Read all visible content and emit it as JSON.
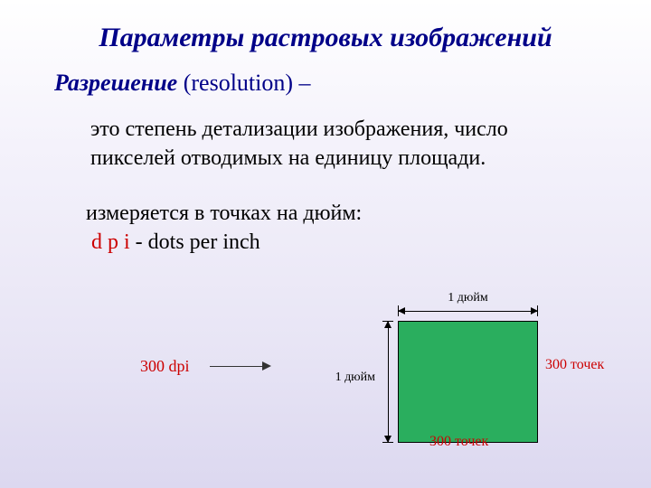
{
  "title": "Параметры растровых изображений",
  "subtitle_main": "Разрешение",
  "subtitle_paren": " (resolution) – ",
  "definition": "это степень детализации изображения, число пикселей отводимых на единицу площади.",
  "measurement_line1": "измеряется в точках на дюйм:",
  "measurement_dpi_red": "d p i",
  "measurement_dpi_rest": " - dots per inch",
  "dpi_label": "300 dpi",
  "diagram": {
    "inch_label_top": "1 дюйм",
    "inch_label_left": "1 дюйм",
    "dots_right": "300 точек",
    "dots_bottom": "300 точек",
    "square_color": "#2aae5e",
    "accent_color": "#cc0000",
    "title_color": "#000088"
  }
}
